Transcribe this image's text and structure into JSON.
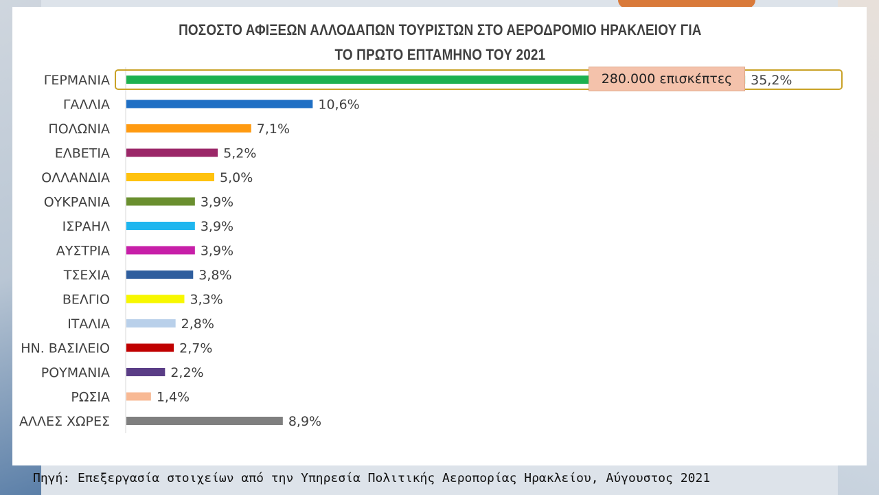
{
  "source": "Πηγή: Επεξεργασία στοιχείων από την Υπηρεσία Πολιτικής Αεροπορίας Ηρακλείου, Αύγουστος 2021",
  "callout": "280.000 επισκέπτες",
  "chart_data": {
    "type": "bar",
    "orientation": "horizontal",
    "title_lines": [
      "ΠΟΣΟΣΤΟ ΑΦΙΞΕΩΝ ΑΛΛΟΔΑΠΩΝ ΤΟΥΡΙΣΤΩΝ  ΣΤΟ ΑΕΡΟΔΡΟΜΙΟ ΗΡΑΚΛΕΙΟΥ ΓΙΑ",
      "ΤΟ ΠΡΩΤΟ ΕΠΤΑΜΗΝΟ ΤΟΥ 2021"
    ],
    "categories": [
      "ΓΕΡΜΑΝΙΑ",
      "ΓΑΛΛΙΑ",
      "ΠΟΛΩΝΙΑ",
      "ΕΛΒΕΤΙΑ",
      "ΟΛΛΑΝΔΙΑ",
      "ΟΥΚΡΑΝΙΑ",
      "ΙΣΡΑΗΛ",
      "ΑΥΣΤΡΙΑ",
      "ΤΣΕΧΙΑ",
      "ΒΕΛΓΙΟ",
      "ΙΤΑΛΙΑ",
      "ΗΝ. ΒΑΣΙΛΕΙΟ",
      "ΡΟΥΜΑΝΙΑ",
      "ΡΩΣΙΑ",
      "ΑΛΛΕΣ ΧΩΡΕΣ"
    ],
    "values": [
      35.2,
      10.6,
      7.1,
      5.2,
      5.0,
      3.9,
      3.9,
      3.9,
      3.8,
      3.3,
      2.8,
      2.7,
      2.2,
      1.4,
      8.9
    ],
    "value_labels": [
      "35,2%",
      "10,6%",
      "7,1%",
      "5,2%",
      "5,0%",
      "3,9%",
      "3,9%",
      "3,9%",
      "3,8%",
      "3,3%",
      "2,8%",
      "2,7%",
      "2,2%",
      "1,4%",
      "8,9%"
    ],
    "colors": [
      "#1db14f",
      "#1f6fc4",
      "#ff9a10",
      "#9b2768",
      "#ffc20e",
      "#6a8f2f",
      "#1fb6ef",
      "#c71fa8",
      "#2f5e9e",
      "#f7f700",
      "#b9d0ea",
      "#c00000",
      "#5a3d86",
      "#f8b994",
      "#7f7f7f"
    ],
    "xlim": [
      0,
      40
    ],
    "grid": false,
    "legend": "none"
  }
}
